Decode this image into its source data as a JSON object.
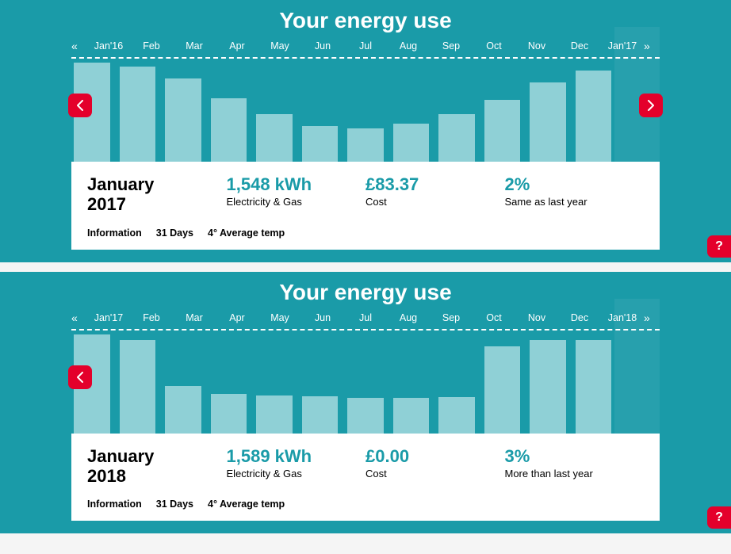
{
  "panels": [
    {
      "title": "Your energy use",
      "months": [
        "Jan'16",
        "Feb",
        "Mar",
        "Apr",
        "May",
        "Jun",
        "Jul",
        "Aug",
        "Sep",
        "Oct",
        "Nov",
        "Dec",
        "Jan'17"
      ],
      "bars": {
        "type": "bar",
        "values": [
          125,
          120,
          105,
          80,
          60,
          45,
          42,
          48,
          60,
          78,
          100,
          115,
          0
        ],
        "max": 130,
        "bar_color": "#8fd0d6",
        "selected_bar_color": "#ffffff",
        "selected_index": 12,
        "background_color": "#1a9ba8"
      },
      "nav": {
        "show_left": true,
        "show_right": true
      },
      "info": {
        "month_line1": "January",
        "month_line2": "2017",
        "energy_value": "1,548 kWh",
        "energy_label": "Electricity & Gas",
        "cost_value": "£83.37",
        "cost_label": "Cost",
        "pct_value": "2%",
        "pct_label": "Same as last year",
        "footer_info_label": "Information",
        "footer_days": "31 Days",
        "footer_temp": "4° Average temp"
      }
    },
    {
      "title": "Your energy use",
      "months": [
        "Jan'17",
        "Feb",
        "Mar",
        "Apr",
        "May",
        "Jun",
        "Jul",
        "Aug",
        "Sep",
        "Oct",
        "Nov",
        "Dec",
        "Jan'18"
      ],
      "bars": {
        "type": "bar",
        "values": [
          125,
          118,
          60,
          50,
          48,
          47,
          45,
          45,
          46,
          110,
          118,
          118,
          0
        ],
        "max": 130,
        "bar_color": "#8fd0d6",
        "selected_bar_color": "#ffffff",
        "selected_index": 12,
        "background_color": "#1a9ba8"
      },
      "nav": {
        "show_left": true,
        "show_right": false
      },
      "info": {
        "month_line1": "January",
        "month_line2": "2018",
        "energy_value": "1,589 kWh",
        "energy_label": "Electricity & Gas",
        "cost_value": "£0.00",
        "cost_label": "Cost",
        "pct_value": "3%",
        "pct_label": "More than last year",
        "footer_info_label": "Information",
        "footer_days": "31 Days",
        "footer_temp": "4° Average temp"
      }
    }
  ],
  "colors": {
    "panel_bg": "#1a9ba8",
    "accent": "#e4002b",
    "bar": "#8fd0d6",
    "text_on_teal": "#ffffff"
  },
  "help_label": "?"
}
